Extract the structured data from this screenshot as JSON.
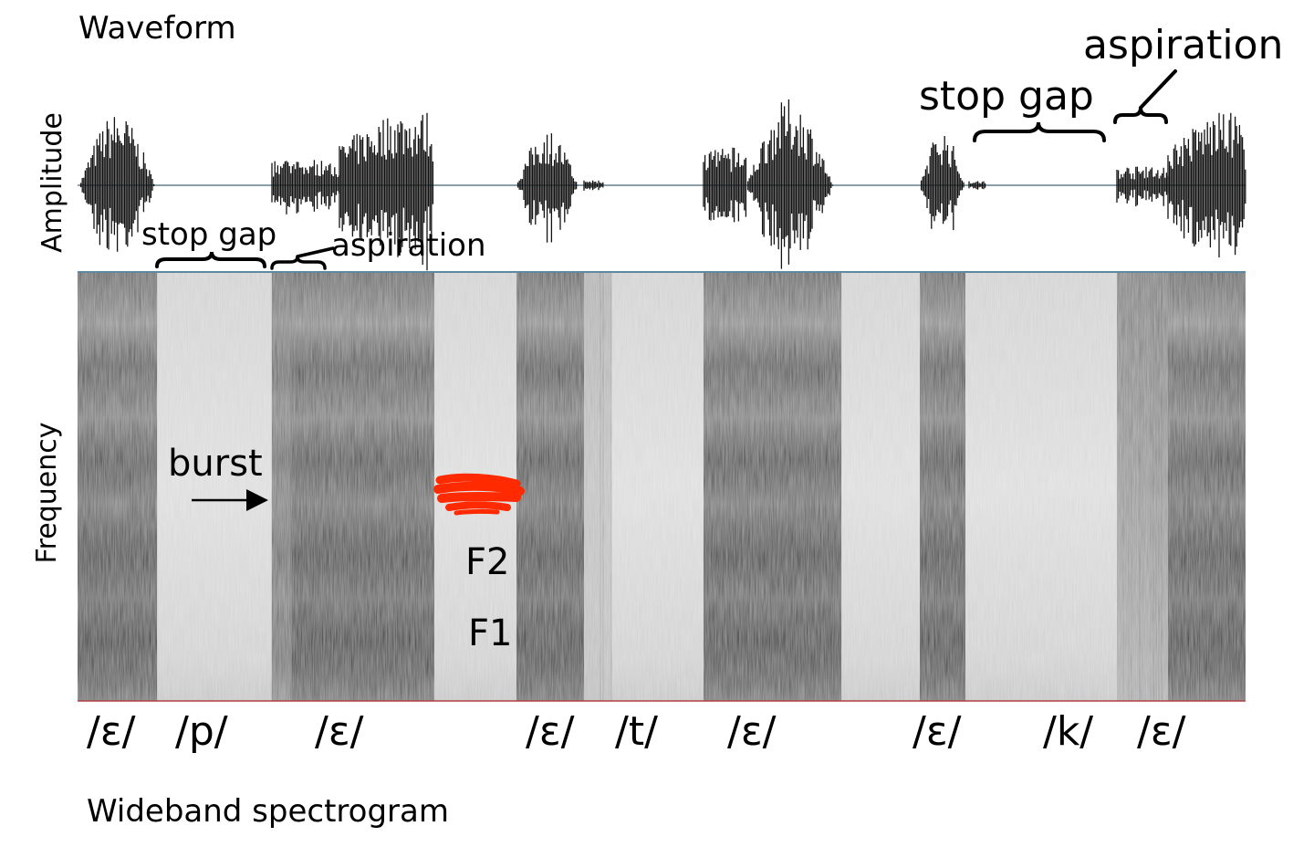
{
  "waveform_title": "Waveform",
  "amplitude_label": "Amplitude",
  "frequency_label": "Frequency",
  "spectrogram_title": "Wideband spectrogram",
  "annotations": {
    "stop_gap_1": "stop gap",
    "aspiration_1": "aspiration",
    "stop_gap_2": "stop gap",
    "aspiration_2": "aspiration",
    "burst": "burst",
    "f2": "F2",
    "f1": "F1"
  },
  "phonemes": [
    "/ɛ/",
    "/p/",
    "/ɛ/",
    "/ɛ/",
    "/t/",
    "/ɛ/",
    "/ɛ/",
    "/k/",
    "/ɛ/"
  ],
  "colors": {
    "background": "#ffffff",
    "waveform": "#111111",
    "silence_line": "#8aa0a8",
    "spectrogram_light": "#d6d6d6",
    "spectrogram_dark": "#2e2e2e",
    "panel_divider": "#5d8aa0",
    "baseline": "#b04040",
    "scribble": "#ff2a00"
  }
}
